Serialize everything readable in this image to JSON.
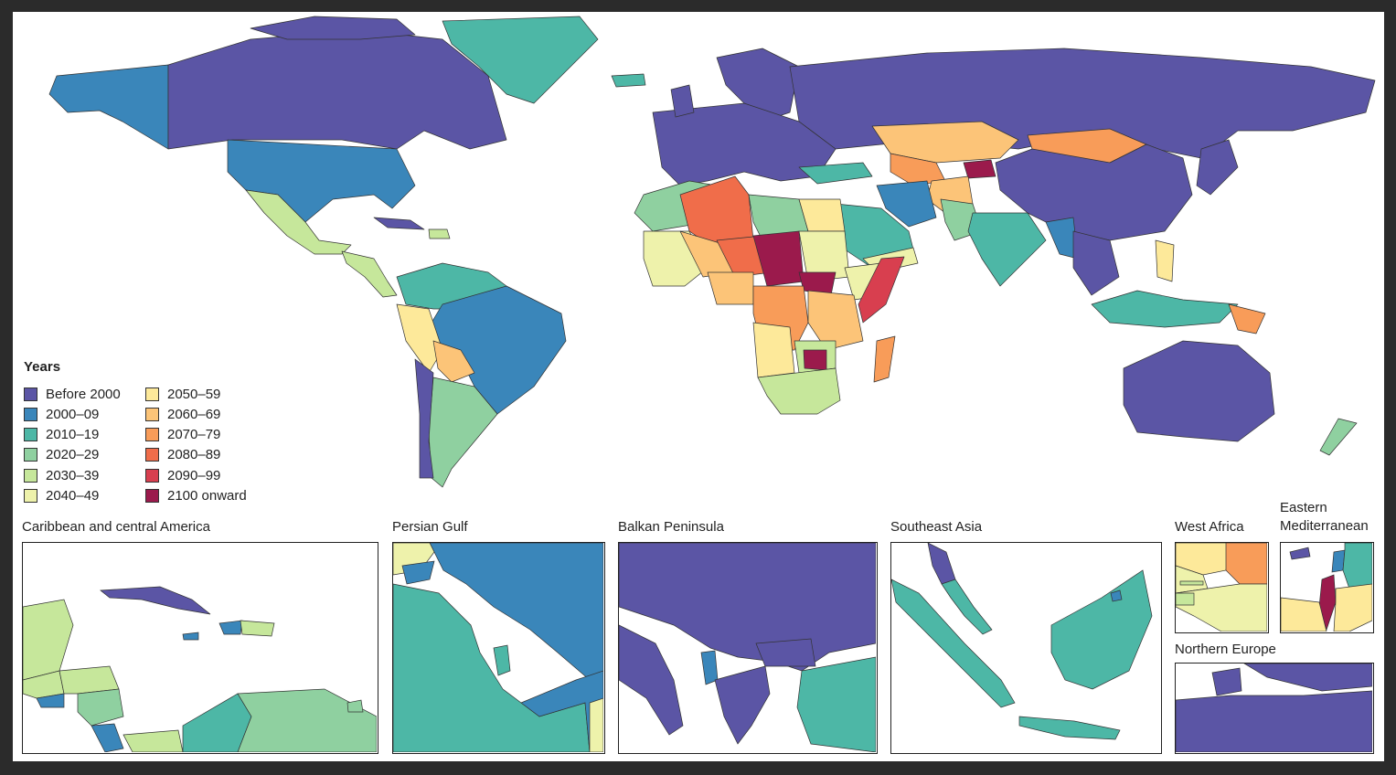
{
  "legend": {
    "title": "Years",
    "items": [
      {
        "label": "Before 2000",
        "color": "#5b55a5"
      },
      {
        "label": "2000–09",
        "color": "#3a86ba"
      },
      {
        "label": "2010–19",
        "color": "#4db7a6"
      },
      {
        "label": "2020–29",
        "color": "#8fd0a0"
      },
      {
        "label": "2030–39",
        "color": "#c6e79b"
      },
      {
        "label": "2040–49",
        "color": "#eef2ab"
      },
      {
        "label": "2050–59",
        "color": "#fde99a"
      },
      {
        "label": "2060–69",
        "color": "#fcc478"
      },
      {
        "label": "2070–79",
        "color": "#f89c59"
      },
      {
        "label": "2080–89",
        "color": "#f06d4a"
      },
      {
        "label": "2090–99",
        "color": "#d83f4f"
      },
      {
        "label": "2100 onward",
        "color": "#9b1a4c"
      }
    ]
  },
  "insets": {
    "caribbean": {
      "title": "Caribbean and central America"
    },
    "persian_gulf": {
      "title": "Persian Gulf"
    },
    "balkan": {
      "title": "Balkan Peninsula"
    },
    "southeast_asia": {
      "title": "Southeast Asia"
    },
    "west_africa": {
      "title": "West Africa"
    },
    "eastern_med": {
      "title": "Eastern Mediterranean"
    },
    "northern_europe": {
      "title": "Northern Europe"
    }
  }
}
